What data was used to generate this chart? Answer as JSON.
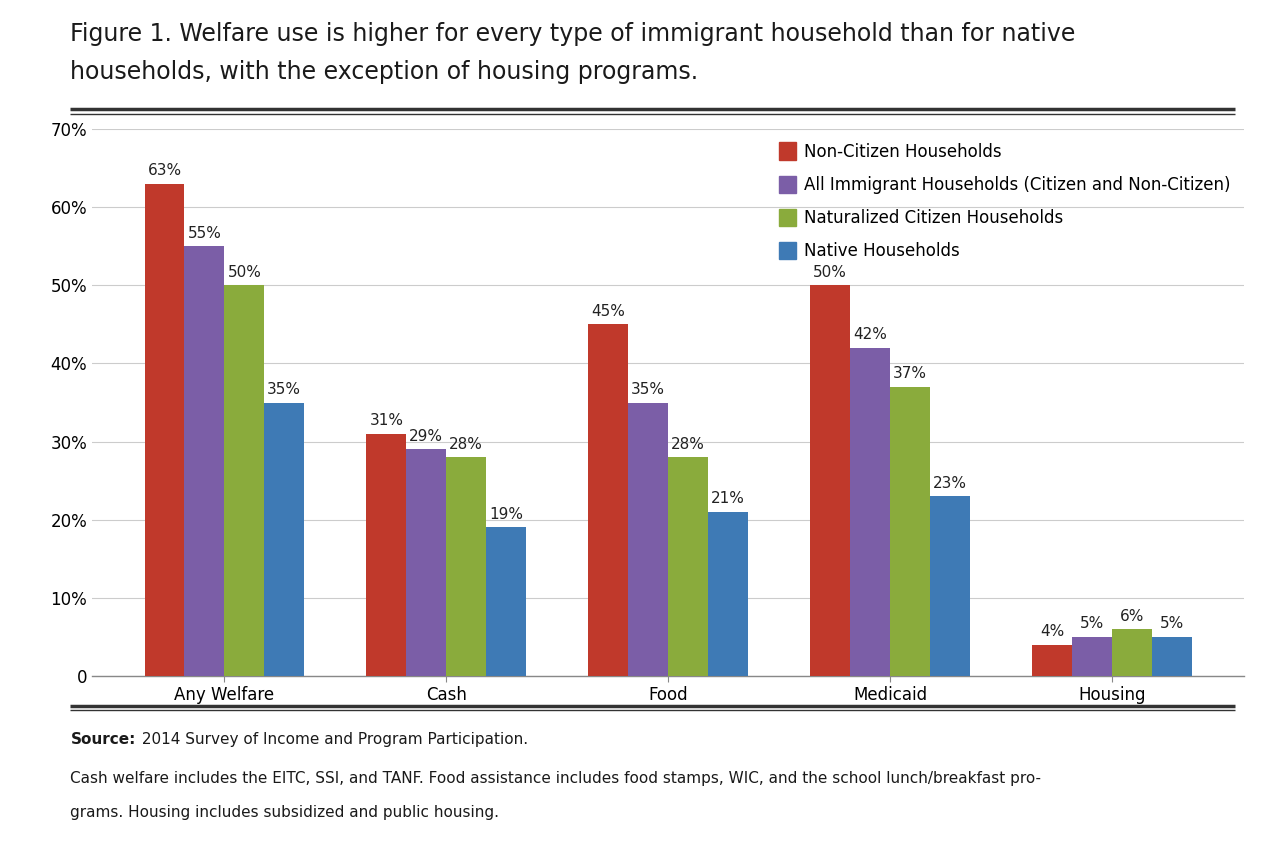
{
  "title_line1": "Figure 1. Welfare use is higher for every type of immigrant household than for native",
  "title_line2": "households, with the exception of housing programs.",
  "categories": [
    "Any Welfare",
    "Cash",
    "Food",
    "Medicaid",
    "Housing"
  ],
  "series": {
    "Non-Citizen Households": [
      63,
      31,
      45,
      50,
      4
    ],
    "All Immigrant Households (Citizen and Non-Citizen)": [
      55,
      29,
      35,
      42,
      5
    ],
    "Naturalized Citizen Households": [
      50,
      28,
      28,
      37,
      6
    ],
    "Native Households": [
      35,
      19,
      21,
      23,
      5
    ]
  },
  "colors": {
    "Non-Citizen Households": "#c0392b",
    "All Immigrant Households (Citizen and Non-Citizen)": "#7b5ea7",
    "Naturalized Citizen Households": "#8aab3c",
    "Native Households": "#3e7ab5"
  },
  "ylim": [
    0,
    70
  ],
  "yticks": [
    0,
    10,
    20,
    30,
    40,
    50,
    60,
    70
  ],
  "ytick_labels": [
    "0",
    "10%",
    "20%",
    "30%",
    "40%",
    "50%",
    "60%",
    "70%"
  ],
  "source_line1_bold": "Source:",
  "source_line1_rest": " 2014 Survey of Income and Program Participation.",
  "source_line2": "Cash welfare includes the EITC, SSI, and TANF. Food assistance includes food stamps, WIC, and the school lunch/breakfast pro-",
  "source_line3": "grams. Housing includes subsidized and public housing.",
  "background_color": "#ffffff",
  "bar_width": 0.18,
  "title_fontsize": 17,
  "legend_fontsize": 12,
  "tick_fontsize": 12,
  "label_fontsize": 11,
  "source_fontsize": 11
}
